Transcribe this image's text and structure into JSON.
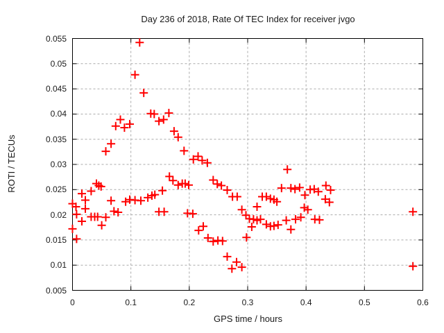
{
  "chart": {
    "title": "Day 236 of 2018, Rate Of TEC Index for receiver jvgo",
    "colors": {
      "marker": "#ff0000",
      "grid": "#aaaaaa",
      "axis": "#000000",
      "background": "#ffffff",
      "text": "#1a1a1a"
    }
  },
  "chart_data": {
    "type": "scatter",
    "title": "Day 236 of 2018, Rate Of TEC Index for receiver jvgo",
    "xlabel": "GPS time / hours",
    "ylabel": "ROTI / TECUs",
    "xlim": [
      0,
      0.6
    ],
    "ylim": [
      0.005,
      0.055
    ],
    "xticks": [
      0,
      0.1,
      0.2,
      0.3,
      0.4,
      0.5,
      0.6
    ],
    "xtick_labels": [
      "0",
      "0.1",
      "0.2",
      "0.3",
      "0.4",
      "0.5",
      "0.6"
    ],
    "yticks": [
      0.005,
      0.01,
      0.015,
      0.02,
      0.025,
      0.03,
      0.035,
      0.04,
      0.045,
      0.05,
      0.055
    ],
    "ytick_labels": [
      "0.005",
      "0.01",
      "0.015",
      "0.02",
      "0.025",
      "0.03",
      "0.035",
      "0.04",
      "0.045",
      "0.05",
      "0.055"
    ],
    "grid": true,
    "legend": "none",
    "marker": "plus",
    "series": [
      {
        "name": "ROTI",
        "points": [
          [
            0.0,
            0.0222
          ],
          [
            0.0,
            0.0172
          ],
          [
            0.006,
            0.0216
          ],
          [
            0.007,
            0.0201
          ],
          [
            0.007,
            0.0152
          ],
          [
            0.016,
            0.0242
          ],
          [
            0.016,
            0.0187
          ],
          [
            0.022,
            0.0229
          ],
          [
            0.022,
            0.0212
          ],
          [
            0.032,
            0.0247
          ],
          [
            0.032,
            0.0196
          ],
          [
            0.038,
            0.0196
          ],
          [
            0.041,
            0.0262
          ],
          [
            0.043,
            0.0196
          ],
          [
            0.045,
            0.0258
          ],
          [
            0.049,
            0.0256
          ],
          [
            0.05,
            0.0179
          ],
          [
            0.057,
            0.0326
          ],
          [
            0.057,
            0.0195
          ],
          [
            0.066,
            0.0341
          ],
          [
            0.066,
            0.0228
          ],
          [
            0.071,
            0.0207
          ],
          [
            0.074,
            0.0376
          ],
          [
            0.078,
            0.0205
          ],
          [
            0.082,
            0.0389
          ],
          [
            0.089,
            0.0373
          ],
          [
            0.091,
            0.0226
          ],
          [
            0.098,
            0.038
          ],
          [
            0.098,
            0.023
          ],
          [
            0.107,
            0.0478
          ],
          [
            0.107,
            0.0229
          ],
          [
            0.115,
            0.0542
          ],
          [
            0.117,
            0.0228
          ],
          [
            0.122,
            0.0442
          ],
          [
            0.129,
            0.0234
          ],
          [
            0.134,
            0.0401
          ],
          [
            0.136,
            0.0238
          ],
          [
            0.14,
            0.04
          ],
          [
            0.141,
            0.024
          ],
          [
            0.148,
            0.0386
          ],
          [
            0.148,
            0.0206
          ],
          [
            0.154,
            0.0248
          ],
          [
            0.156,
            0.0389
          ],
          [
            0.157,
            0.0206
          ],
          [
            0.165,
            0.0402
          ],
          [
            0.166,
            0.0276
          ],
          [
            0.172,
            0.0268
          ],
          [
            0.174,
            0.0366
          ],
          [
            0.181,
            0.0354
          ],
          [
            0.181,
            0.0259
          ],
          [
            0.188,
            0.0262
          ],
          [
            0.191,
            0.0327
          ],
          [
            0.193,
            0.0262
          ],
          [
            0.197,
            0.0203
          ],
          [
            0.199,
            0.0259
          ],
          [
            0.206,
            0.0202
          ],
          [
            0.207,
            0.031
          ],
          [
            0.215,
            0.0316
          ],
          [
            0.216,
            0.0169
          ],
          [
            0.222,
            0.0308
          ],
          [
            0.224,
            0.0177
          ],
          [
            0.231,
            0.0303
          ],
          [
            0.232,
            0.0154
          ],
          [
            0.241,
            0.0269
          ],
          [
            0.241,
            0.0147
          ],
          [
            0.248,
            0.0261
          ],
          [
            0.249,
            0.0149
          ],
          [
            0.255,
            0.0258
          ],
          [
            0.257,
            0.0148
          ],
          [
            0.265,
            0.0249
          ],
          [
            0.265,
            0.0117
          ],
          [
            0.273,
            0.0093
          ],
          [
            0.274,
            0.0236
          ],
          [
            0.281,
            0.0106
          ],
          [
            0.282,
            0.0236
          ],
          [
            0.29,
            0.021
          ],
          [
            0.29,
            0.0096
          ],
          [
            0.297,
            0.0199
          ],
          [
            0.298,
            0.0155
          ],
          [
            0.303,
            0.0192
          ],
          [
            0.307,
            0.0176
          ],
          [
            0.31,
            0.0191
          ],
          [
            0.316,
            0.0216
          ],
          [
            0.316,
            0.0189
          ],
          [
            0.322,
            0.0191
          ],
          [
            0.325,
            0.0236
          ],
          [
            0.332,
            0.0236
          ],
          [
            0.332,
            0.0181
          ],
          [
            0.339,
            0.0232
          ],
          [
            0.339,
            0.0177
          ],
          [
            0.345,
            0.023
          ],
          [
            0.345,
            0.0178
          ],
          [
            0.35,
            0.0226
          ],
          [
            0.352,
            0.018
          ],
          [
            0.358,
            0.0253
          ],
          [
            0.366,
            0.0189
          ],
          [
            0.368,
            0.029
          ],
          [
            0.374,
            0.0253
          ],
          [
            0.374,
            0.0171
          ],
          [
            0.381,
            0.0251
          ],
          [
            0.382,
            0.0191
          ],
          [
            0.389,
            0.0254
          ],
          [
            0.391,
            0.0195
          ],
          [
            0.397,
            0.0214
          ],
          [
            0.398,
            0.0239
          ],
          [
            0.403,
            0.021
          ],
          [
            0.407,
            0.025
          ],
          [
            0.414,
            0.0251
          ],
          [
            0.415,
            0.0191
          ],
          [
            0.421,
            0.0246
          ],
          [
            0.423,
            0.019
          ],
          [
            0.433,
            0.0231
          ],
          [
            0.434,
            0.0258
          ],
          [
            0.44,
            0.0225
          ],
          [
            0.442,
            0.0249
          ],
          [
            0.583,
            0.0206
          ],
          [
            0.583,
            0.0098
          ]
        ]
      }
    ]
  }
}
